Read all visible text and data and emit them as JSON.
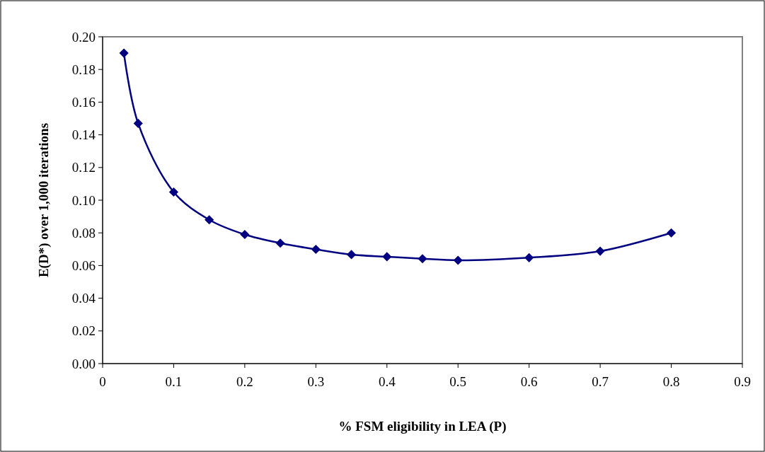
{
  "chart_data": {
    "type": "line",
    "xlabel": "% FSM eligibility in LEA (P)",
    "ylabel": "E(D*) over 1,000 iterations",
    "x": [
      0.03,
      0.05,
      0.1,
      0.15,
      0.2,
      0.25,
      0.3,
      0.35,
      0.4,
      0.45,
      0.5,
      0.6,
      0.7,
      0.8
    ],
    "series": [
      {
        "color": "#000080",
        "values": [
          0.19,
          0.147,
          0.105,
          0.088,
          0.079,
          0.0737,
          0.0699,
          0.0667,
          0.0654,
          0.0642,
          0.0632,
          0.0648,
          0.0688,
          0.08
        ]
      }
    ],
    "xlim": [
      0,
      0.9
    ],
    "xticks": [
      0,
      0.1,
      0.2,
      0.3,
      0.4,
      0.5,
      0.6,
      0.7,
      0.8,
      0.9
    ],
    "ylim": [
      0,
      0.2
    ],
    "yticks": [
      {
        "value": 0,
        "label": "0.00"
      },
      {
        "value": 0.02,
        "label": "0.02"
      },
      {
        "value": 0.04,
        "label": "0.04"
      },
      {
        "value": 0.06,
        "label": "0.06"
      },
      {
        "value": 0.08,
        "label": "0.08"
      },
      {
        "value": 0.1,
        "label": "0.10"
      },
      {
        "value": 0.12,
        "label": "0.12"
      },
      {
        "value": 0.14,
        "label": "0.14"
      },
      {
        "value": 0.16,
        "label": "0.16"
      },
      {
        "value": 0.18,
        "label": "0.18"
      },
      {
        "value": 0.2,
        "label": "0.20"
      }
    ],
    "marker": "diamond",
    "line_style": "solid"
  }
}
